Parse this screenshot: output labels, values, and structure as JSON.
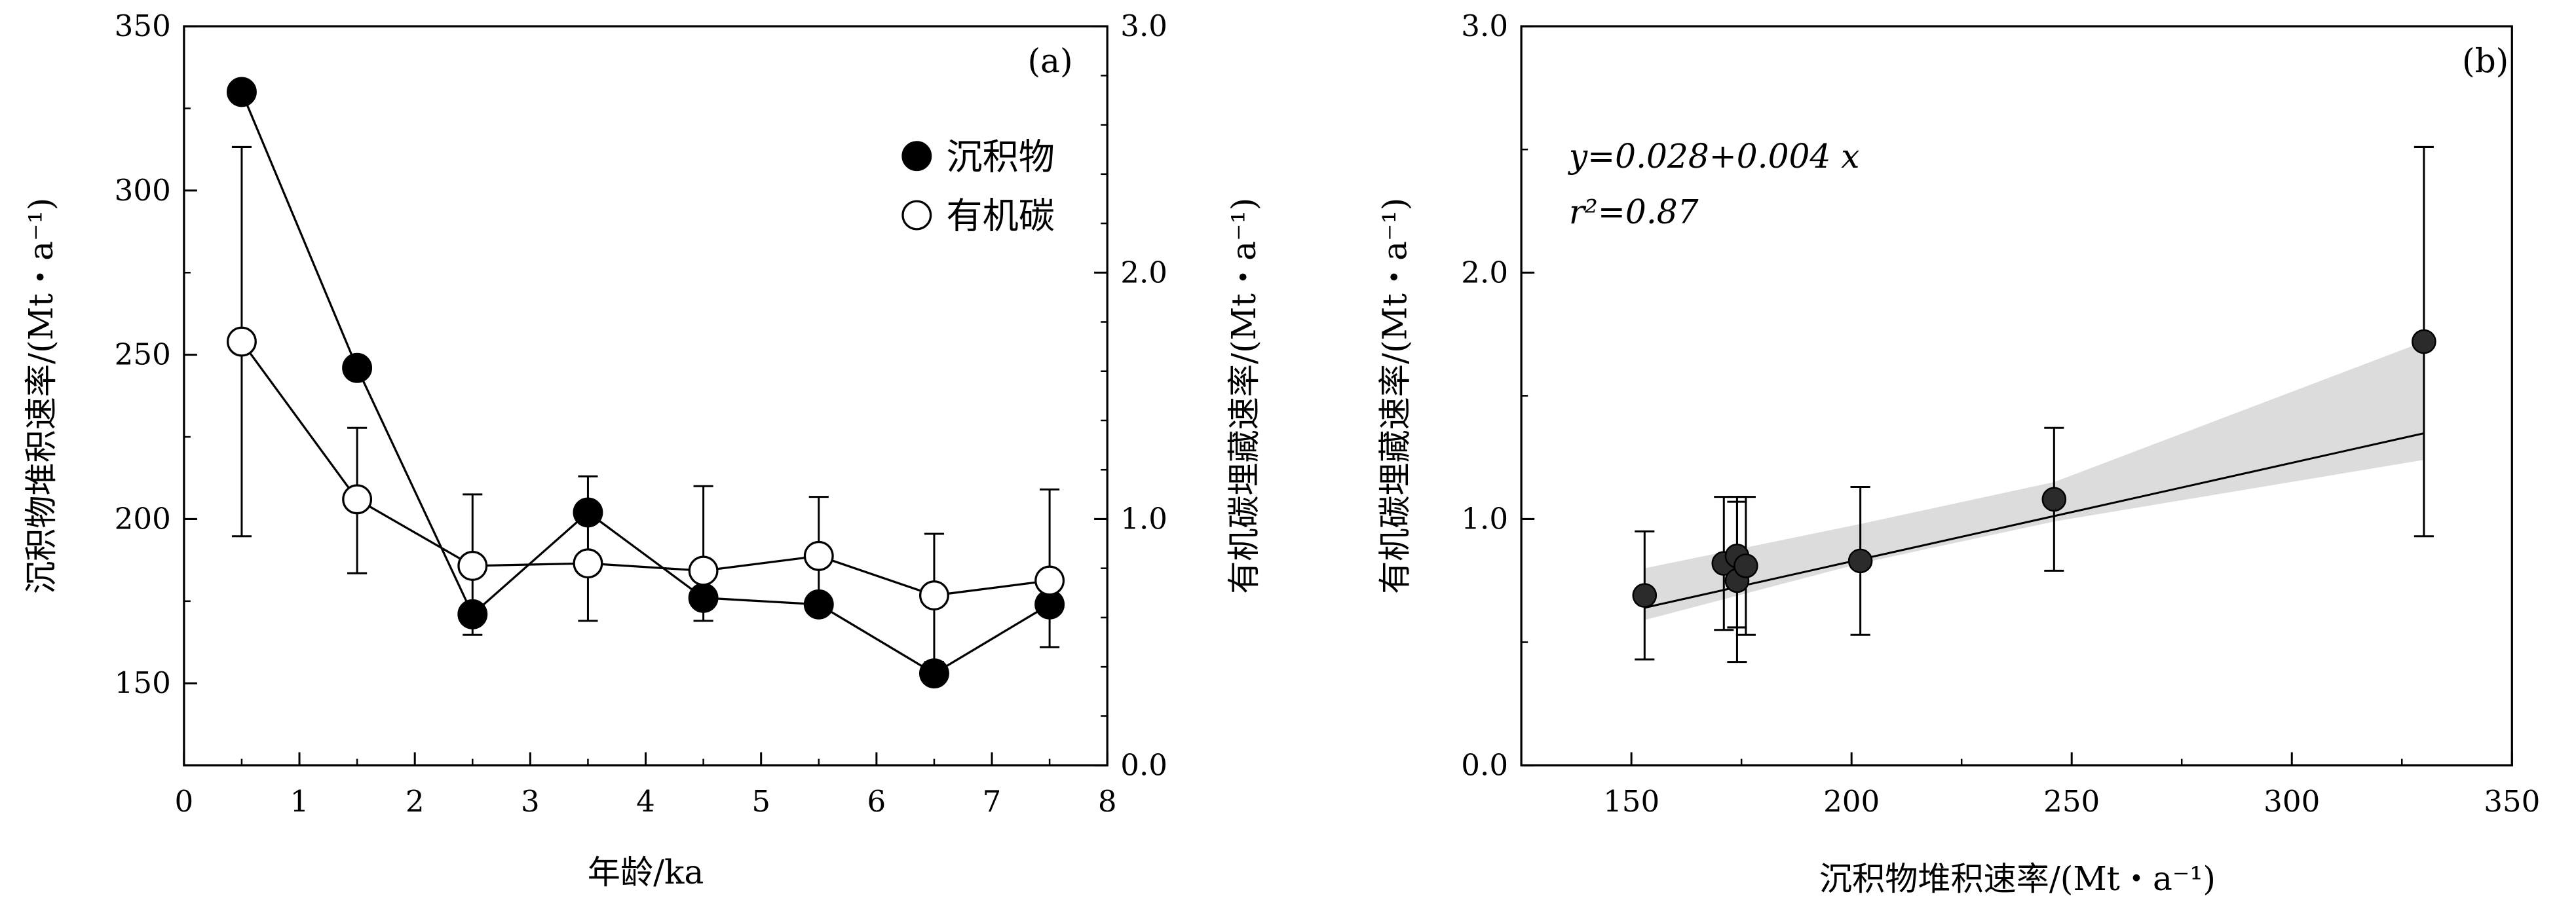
{
  "chart_data": [
    {
      "type": "line",
      "panel_label": "(a)",
      "xlabel": "年龄/ka",
      "ylabel_left": "沉积物堆积速率/(Mt・a⁻¹)",
      "ylabel_right": "有机碳埋藏速率/(Mt・a⁻¹)",
      "xlim": [
        0,
        8
      ],
      "ylim_left": [
        125,
        350
      ],
      "ylim_right": [
        0.0,
        3.0
      ],
      "x_ticks": [
        "0",
        "1",
        "2",
        "3",
        "4",
        "5",
        "6",
        "7",
        "8"
      ],
      "y_left_ticks": [
        "150",
        "200",
        "250",
        "300",
        "350"
      ],
      "y_right_ticks": [
        "0.0",
        "1.0",
        "2.0",
        "3.0"
      ],
      "legend_position": "upper-right",
      "series": [
        {
          "name": "沉积物",
          "axis": "left",
          "marker": "filled-circle",
          "x": [
            0.5,
            1.5,
            2.5,
            3.5,
            4.5,
            5.5,
            6.5,
            7.5
          ],
          "y": [
            330,
            246,
            171,
            202,
            176,
            174,
            153,
            174
          ],
          "err_low": [
            null,
            null,
            null,
            169,
            169,
            null,
            null,
            161
          ],
          "err_high": [
            null,
            null,
            null,
            213,
            210,
            null,
            null,
            209
          ]
        },
        {
          "name": "有机碳",
          "axis": "right",
          "marker": "open-circle",
          "x": [
            0.5,
            1.5,
            2.5,
            3.5,
            4.5,
            5.5,
            6.5,
            7.5
          ],
          "y": [
            1.72,
            1.08,
            0.81,
            0.82,
            0.79,
            0.85,
            0.69,
            0.75
          ],
          "err_low": [
            0.93,
            0.78,
            0.53,
            null,
            null,
            0.64,
            0.42,
            null
          ],
          "err_high": [
            2.51,
            1.37,
            1.1,
            null,
            null,
            1.09,
            0.94,
            null
          ]
        }
      ]
    },
    {
      "type": "scatter",
      "panel_label": "(b)",
      "xlabel": "沉积物堆积速率/(Mt・a⁻¹)",
      "ylabel": "有机碳埋藏速率/(Mt・a⁻¹)",
      "xlim": [
        125,
        350
      ],
      "ylim": [
        0.0,
        3.0
      ],
      "x_ticks": [
        "150",
        "200",
        "250",
        "300",
        "350"
      ],
      "y_ticks": [
        "0.0",
        "1.0",
        "2.0",
        "3.0"
      ],
      "equation": "y=0.028+0.004 x",
      "r2": "r²=0.87",
      "fit": {
        "intercept": 0.028,
        "slope": 0.004,
        "x_range": [
          153,
          330
        ]
      },
      "confidence_band": {
        "x": [
          153,
          202,
          246,
          330
        ],
        "low": [
          0.59,
          0.82,
          0.99,
          1.24
        ],
        "high": [
          0.8,
          0.98,
          1.15,
          1.72
        ]
      },
      "points": {
        "x": [
          153,
          171,
          174,
          174,
          176,
          202,
          246,
          330
        ],
        "y": [
          0.69,
          0.82,
          0.85,
          0.75,
          0.81,
          0.83,
          1.08,
          1.72
        ],
        "err_low": [
          0.43,
          0.55,
          0.56,
          0.42,
          0.53,
          0.53,
          0.79,
          0.93
        ],
        "err_high": [
          0.95,
          1.09,
          1.09,
          1.07,
          1.09,
          1.13,
          1.37,
          2.51
        ]
      }
    }
  ]
}
